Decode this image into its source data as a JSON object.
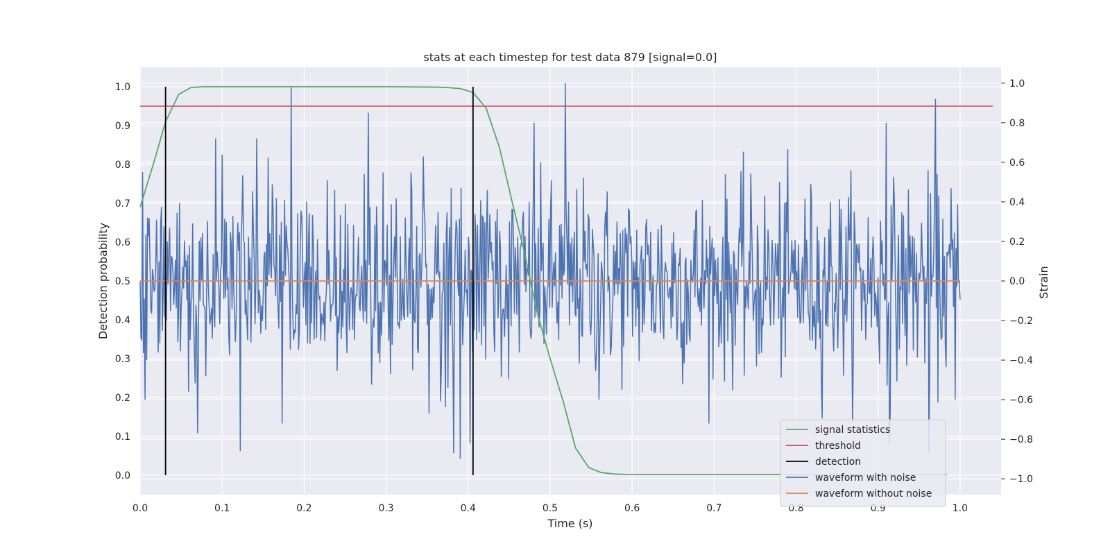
{
  "chart_data": {
    "type": "line",
    "title": "stats at each timestep for test data 879 [signal=0.0]",
    "xlabel": "Time (s)",
    "ylabel": "Detection probability",
    "ylabel_right": "Strain",
    "xlim": [
      0.0,
      1.05
    ],
    "ylim": [
      -0.05,
      1.05
    ],
    "ylim_right": [
      -1.08,
      1.08
    ],
    "xticks": [
      "0.0",
      "0.1",
      "0.2",
      "0.3",
      "0.4",
      "0.5",
      "0.6",
      "0.7",
      "0.8",
      "0.9",
      "1.0"
    ],
    "yticks": [
      "0.0",
      "0.1",
      "0.2",
      "0.3",
      "0.4",
      "0.5",
      "0.6",
      "0.7",
      "0.8",
      "0.9",
      "1.0"
    ],
    "yticks_right": [
      "−1.0",
      "−0.8",
      "−0.6",
      "−0.4",
      "−0.2",
      "0.0",
      "0.2",
      "0.4",
      "0.6",
      "0.8",
      "1.0"
    ],
    "grid": true,
    "legend_position": "lower-right",
    "series": [
      {
        "name": "signal statistics",
        "axis": "left",
        "color": "#55a868",
        "x": [
          0.0,
          0.016,
          0.031,
          0.047,
          0.062,
          0.078,
          0.094,
          0.2,
          0.3,
          0.36,
          0.375,
          0.391,
          0.406,
          0.422,
          0.438,
          0.453,
          0.469,
          0.484,
          0.5,
          0.516,
          0.531,
          0.547,
          0.562,
          0.578,
          0.594,
          0.7,
          0.8,
          0.9,
          0.984
        ],
        "values": [
          0.69,
          0.8,
          0.91,
          0.98,
          0.998,
          1.0,
          1.0,
          1.0,
          1.0,
          0.999,
          0.998,
          0.995,
          0.985,
          0.945,
          0.845,
          0.71,
          0.57,
          0.42,
          0.3,
          0.19,
          0.07,
          0.02,
          0.007,
          0.003,
          0.002,
          0.002,
          0.002,
          0.002,
          0.002
        ]
      },
      {
        "name": "threshold",
        "axis": "left",
        "color": "#c44e52",
        "x": [
          0.0,
          1.04
        ],
        "values": [
          0.95,
          0.95
        ]
      },
      {
        "name": "detection",
        "axis": "left",
        "color": "#000000",
        "vlines": [
          0.031,
          0.406
        ],
        "range": [
          0.0,
          1.0
        ]
      },
      {
        "name": "waveform with noise",
        "axis": "right",
        "color": "#4c72b0",
        "x_range": [
          0.0,
          1.0
        ],
        "n_points": 1000,
        "spikes": [
          {
            "x": 0.003,
            "value": 0.55
          },
          {
            "x": 0.006,
            "value": -0.6
          },
          {
            "x": 0.07,
            "value": -0.77
          },
          {
            "x": 0.122,
            "value": -0.86
          },
          {
            "x": 0.184,
            "value": 0.98
          },
          {
            "x": 0.278,
            "value": 0.85
          },
          {
            "x": 0.382,
            "value": -0.87
          },
          {
            "x": 0.39,
            "value": -0.9
          },
          {
            "x": 0.402,
            "value": -0.82
          },
          {
            "x": 0.48,
            "value": 0.8
          },
          {
            "x": 0.519,
            "value": 1.0
          },
          {
            "x": 0.56,
            "value": -0.6
          },
          {
            "x": 0.91,
            "value": 0.8
          },
          {
            "x": 0.914,
            "value": -0.83
          },
          {
            "x": 0.962,
            "value": -0.87
          },
          {
            "x": 0.97,
            "value": 0.92
          },
          {
            "x": 0.994,
            "value": -0.6
          }
        ]
      },
      {
        "name": "waveform without noise",
        "axis": "right",
        "color": "#dd8452",
        "x": [
          0.0,
          1.0
        ],
        "values": [
          0.0,
          0.0
        ]
      }
    ]
  }
}
